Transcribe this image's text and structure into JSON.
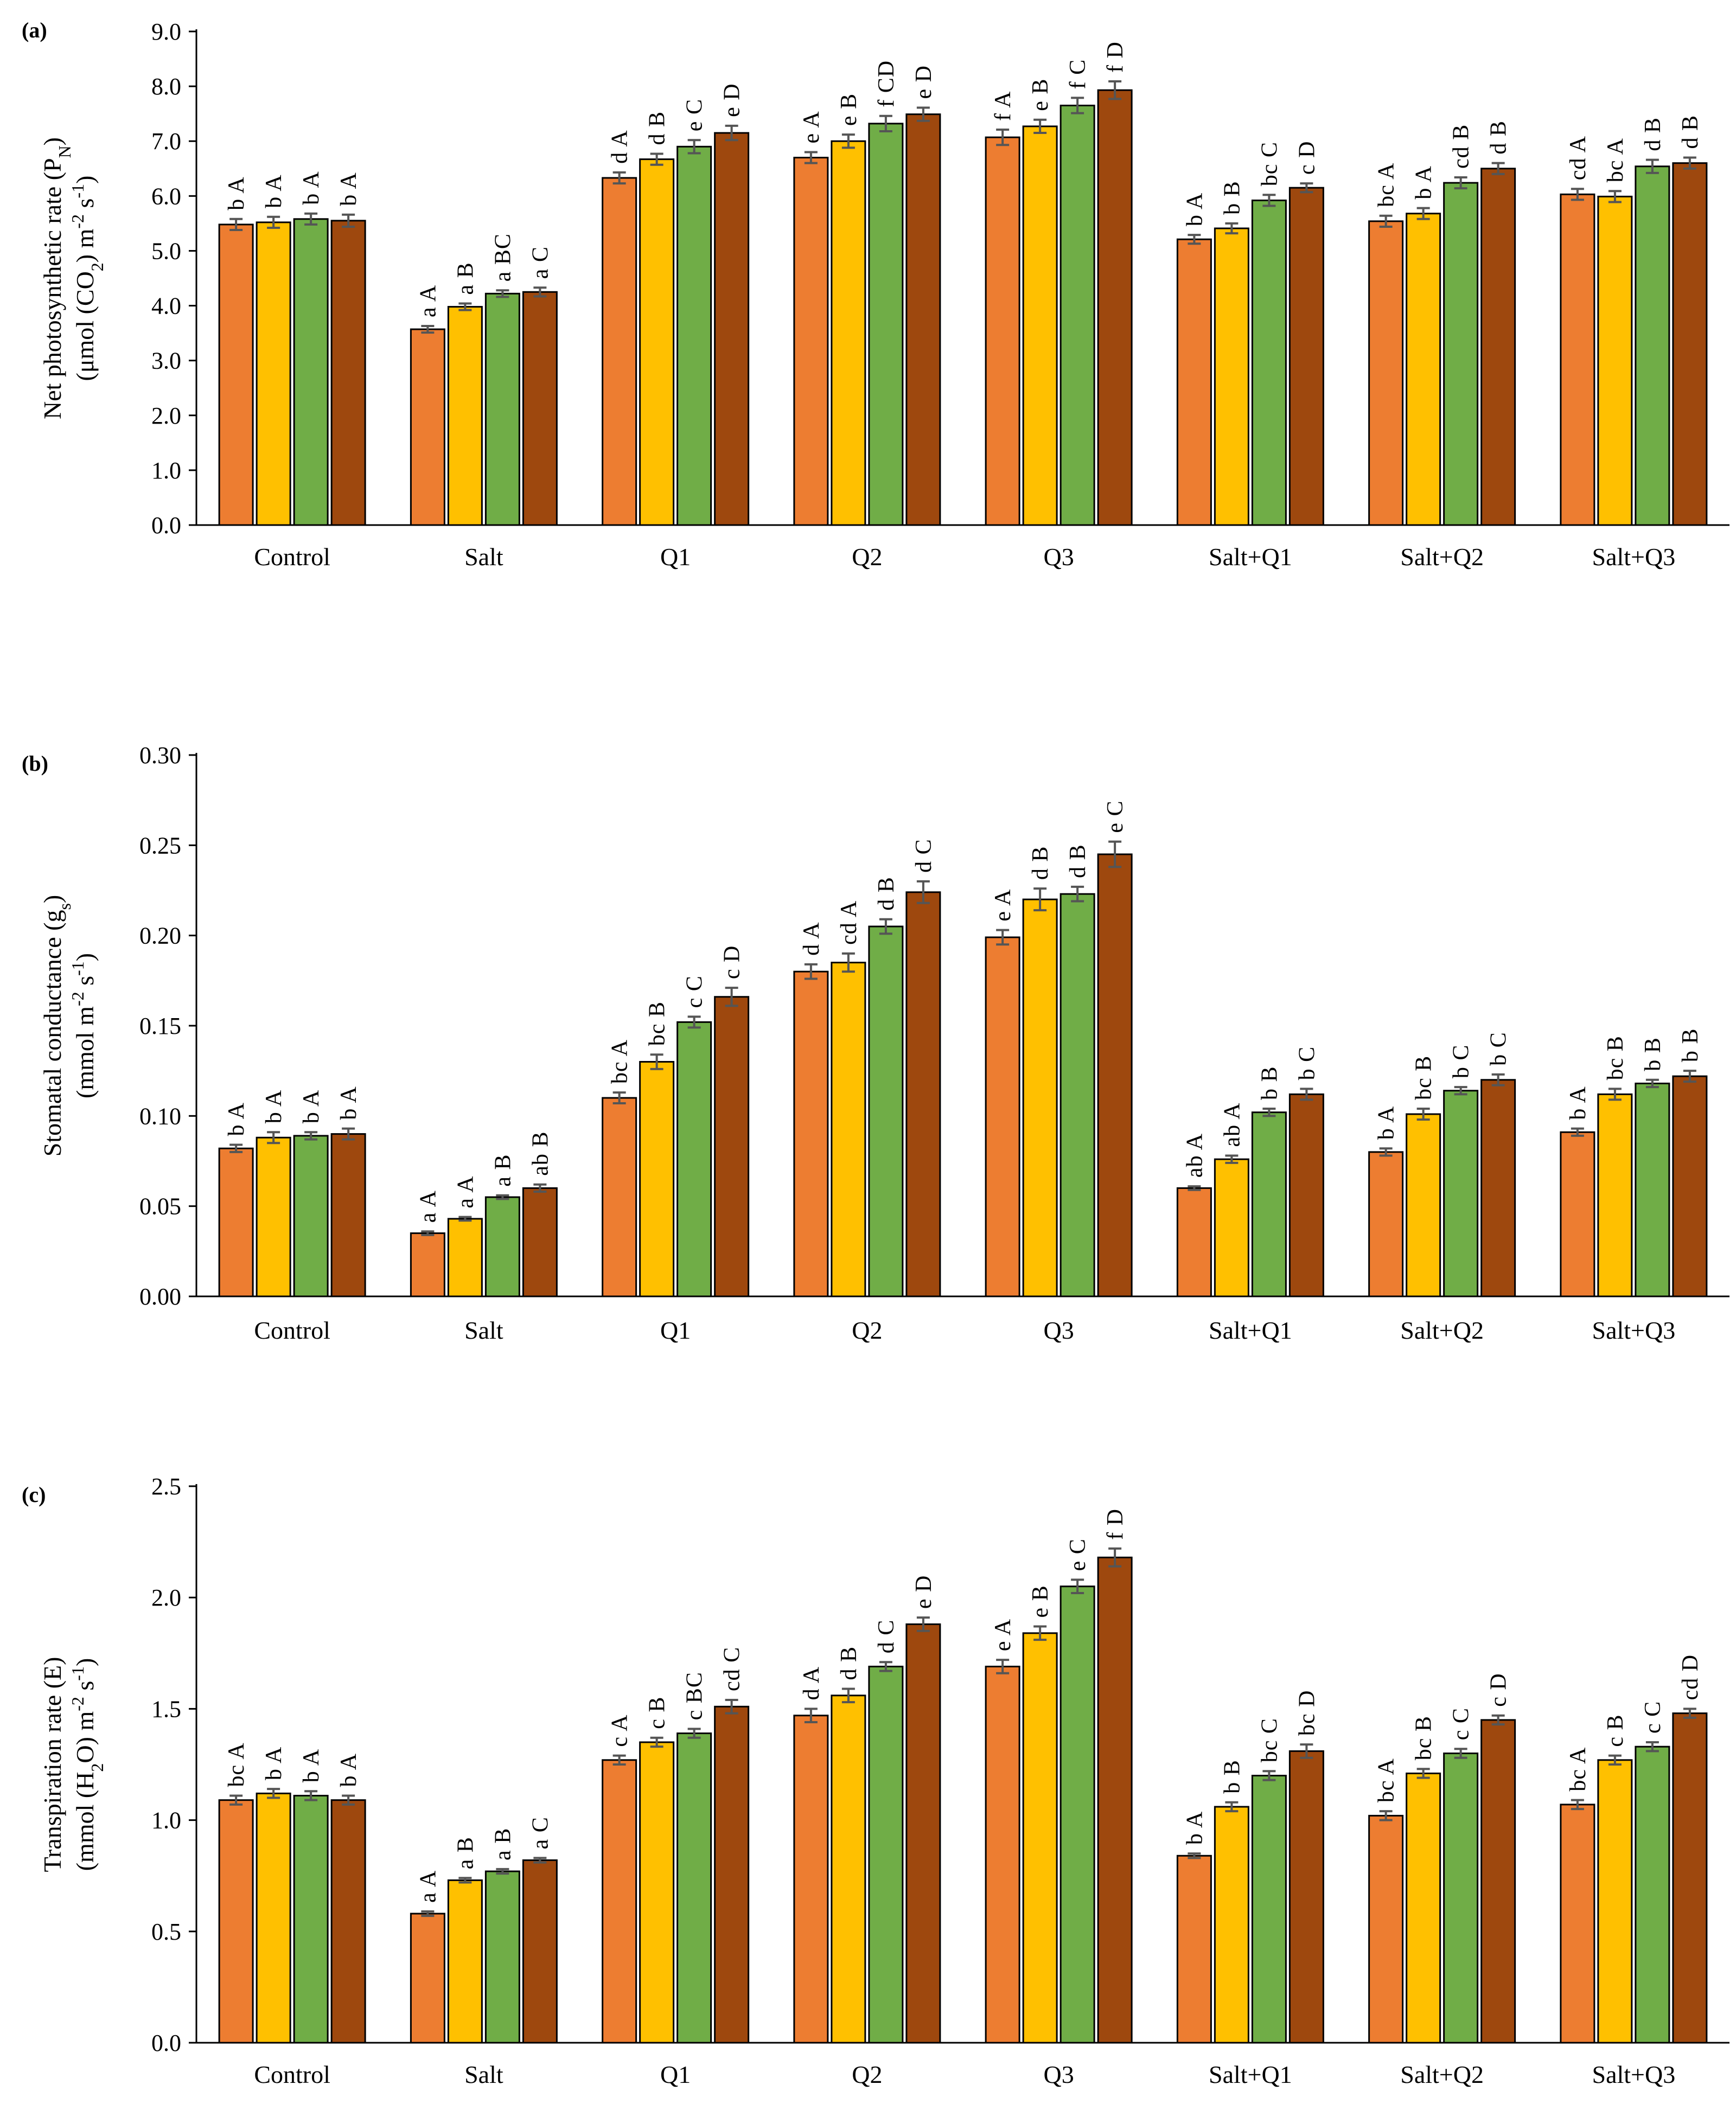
{
  "colors": {
    "series": [
      "#ED7D31",
      "#FFC000",
      "#70AD47",
      "#9E480E"
    ],
    "bar_stroke": "#000000",
    "error_bar": "#555555",
    "axis": "#000000"
  },
  "chart_data": [
    {
      "panel": "(a)",
      "type": "bar",
      "ylabel_line1": "Net photosynthetic rate (P",
      "ylabel_line1_sub": "N",
      "ylabel_line1_end": ")",
      "ylabel_line2": "(μmol (CO",
      "ylabel_line2_sub": "2",
      "ylabel_line2_end": ") m",
      "ylabel_line2_sup1": "-2",
      "ylabel_line2_mid": " s",
      "ylabel_line2_sup2": "-1",
      "ylabel_line2_tail": ")",
      "ylim": [
        0,
        9
      ],
      "yticks": [
        "0.0",
        "1.0",
        "2.0",
        "3.0",
        "4.0",
        "5.0",
        "6.0",
        "7.0",
        "8.0",
        "9.0"
      ],
      "categories": [
        "Control",
        "Salt",
        "Q1",
        "Q2",
        "Q3",
        "Salt+Q1",
        "Salt+Q2",
        "Salt+Q3"
      ],
      "series": [
        {
          "values": [
            5.48,
            3.57,
            6.33,
            6.7,
            7.07,
            5.21,
            5.54,
            6.03
          ],
          "errors": [
            0.1,
            0.06,
            0.1,
            0.1,
            0.14,
            0.08,
            0.1,
            0.1
          ],
          "labels": [
            "b A",
            "a A",
            "d A",
            "e A",
            "f A",
            "b A",
            "bc A",
            "cd A"
          ]
        },
        {
          "values": [
            5.52,
            3.98,
            6.67,
            7.0,
            7.27,
            5.41,
            5.68,
            5.99
          ],
          "errors": [
            0.1,
            0.06,
            0.1,
            0.12,
            0.12,
            0.09,
            0.1,
            0.1
          ],
          "labels": [
            "b A",
            "a B",
            "d B",
            "e B",
            "e B",
            "b B",
            "b A",
            "bc A"
          ]
        },
        {
          "values": [
            5.58,
            4.22,
            6.9,
            7.32,
            7.65,
            5.92,
            6.24,
            6.54
          ],
          "errors": [
            0.1,
            0.06,
            0.12,
            0.14,
            0.14,
            0.1,
            0.1,
            0.12
          ],
          "labels": [
            "b A",
            "a BC",
            "e C",
            "f CD",
            "f C",
            "bc C",
            "cd B",
            "d B"
          ]
        },
        {
          "values": [
            5.55,
            4.25,
            7.15,
            7.49,
            7.93,
            6.15,
            6.5,
            6.6
          ],
          "errors": [
            0.11,
            0.08,
            0.13,
            0.12,
            0.16,
            0.08,
            0.1,
            0.1
          ],
          "labels": [
            "b A",
            "a C",
            "e D",
            "e D",
            "f D",
            "c D",
            "d B",
            "d B"
          ]
        }
      ]
    },
    {
      "panel": "(b)",
      "type": "bar",
      "ylabel_line1": "Stomatal conductance (g",
      "ylabel_line1_sub": "s",
      "ylabel_line1_end": ")",
      "ylabel_line2": "(mmol m",
      "ylabel_line2_sub": "",
      "ylabel_line2_end": "",
      "ylabel_line2_sup1": "-2",
      "ylabel_line2_mid": " s",
      "ylabel_line2_sup2": "-1",
      "ylabel_line2_tail": ")",
      "ylim": [
        0,
        0.3
      ],
      "yticks": [
        "0.00",
        "0.05",
        "0.10",
        "0.15",
        "0.20",
        "0.25",
        "0.30"
      ],
      "categories": [
        "Control",
        "Salt",
        "Q1",
        "Q2",
        "Q3",
        "Salt+Q1",
        "Salt+Q2",
        "Salt+Q3"
      ],
      "series": [
        {
          "values": [
            0.082,
            0.035,
            0.11,
            0.18,
            0.199,
            0.06,
            0.08,
            0.091
          ],
          "errors": [
            0.002,
            0.001,
            0.003,
            0.004,
            0.004,
            0.001,
            0.002,
            0.002
          ],
          "labels": [
            "b A",
            "a A",
            "bc A",
            "d A",
            "e A",
            "ab A",
            "b A",
            "b A"
          ]
        },
        {
          "values": [
            0.088,
            0.043,
            0.13,
            0.185,
            0.22,
            0.076,
            0.101,
            0.112
          ],
          "errors": [
            0.003,
            0.001,
            0.004,
            0.005,
            0.006,
            0.002,
            0.003,
            0.003
          ],
          "labels": [
            "b A",
            "a A",
            "bc B",
            "cd A",
            "d B",
            "ab A",
            "bc B",
            "bc B"
          ]
        },
        {
          "values": [
            0.089,
            0.055,
            0.152,
            0.205,
            0.223,
            0.102,
            0.114,
            0.118
          ],
          "errors": [
            0.002,
            0.001,
            0.003,
            0.004,
            0.004,
            0.002,
            0.002,
            0.002
          ],
          "labels": [
            "b A",
            "a B",
            "c C",
            "d B",
            "d B",
            "b B",
            "b C",
            "b B"
          ]
        },
        {
          "values": [
            0.09,
            0.06,
            0.166,
            0.224,
            0.245,
            0.112,
            0.12,
            0.122
          ],
          "errors": [
            0.003,
            0.002,
            0.005,
            0.006,
            0.007,
            0.003,
            0.003,
            0.003
          ],
          "labels": [
            "b A",
            "ab B",
            "c D",
            "d C",
            "e C",
            "b C",
            "b C",
            "b B"
          ]
        }
      ]
    },
    {
      "panel": "(c)",
      "type": "bar",
      "ylabel_line1": "Transpiration rate (E)",
      "ylabel_line1_sub": "",
      "ylabel_line1_end": "",
      "ylabel_line2": "(mmol (H",
      "ylabel_line2_sub": "2",
      "ylabel_line2_end": "O) m",
      "ylabel_line2_sup1": "-2",
      "ylabel_line2_mid": " s",
      "ylabel_line2_sup2": "-1",
      "ylabel_line2_tail": ")",
      "ylim": [
        0,
        2.5
      ],
      "yticks": [
        "0.0",
        "0.5",
        "1.0",
        "1.5",
        "2.0",
        "2.5"
      ],
      "categories": [
        "Control",
        "Salt",
        "Q1",
        "Q2",
        "Q3",
        "Salt+Q1",
        "Salt+Q2",
        "Salt+Q3"
      ],
      "series": [
        {
          "values": [
            1.09,
            0.58,
            1.27,
            1.47,
            1.69,
            0.84,
            1.02,
            1.07
          ],
          "errors": [
            0.02,
            0.01,
            0.02,
            0.03,
            0.03,
            0.01,
            0.02,
            0.02
          ],
          "labels": [
            "bc A",
            "a A",
            "c A",
            "d A",
            "e A",
            "b A",
            "bc A",
            "bc A"
          ]
        },
        {
          "values": [
            1.12,
            0.73,
            1.35,
            1.56,
            1.84,
            1.06,
            1.21,
            1.27
          ],
          "errors": [
            0.02,
            0.01,
            0.02,
            0.03,
            0.03,
            0.02,
            0.02,
            0.02
          ],
          "labels": [
            "b A",
            "a B",
            "c B",
            "d B",
            "e B",
            "b B",
            "bc B",
            "c B"
          ]
        },
        {
          "values": [
            1.11,
            0.77,
            1.39,
            1.69,
            2.05,
            1.2,
            1.3,
            1.33
          ],
          "errors": [
            0.02,
            0.01,
            0.02,
            0.02,
            0.03,
            0.02,
            0.02,
            0.02
          ],
          "labels": [
            "b A",
            "a B",
            "c BC",
            "d C",
            "e C",
            "bc C",
            "c C",
            "c C"
          ]
        },
        {
          "values": [
            1.09,
            0.82,
            1.51,
            1.88,
            2.18,
            1.31,
            1.45,
            1.48
          ],
          "errors": [
            0.02,
            0.01,
            0.03,
            0.03,
            0.04,
            0.03,
            0.02,
            0.02
          ],
          "labels": [
            "b A",
            "a C",
            "cd C",
            "e D",
            "f D",
            "bc D",
            "c D",
            "cd D"
          ]
        }
      ]
    }
  ]
}
